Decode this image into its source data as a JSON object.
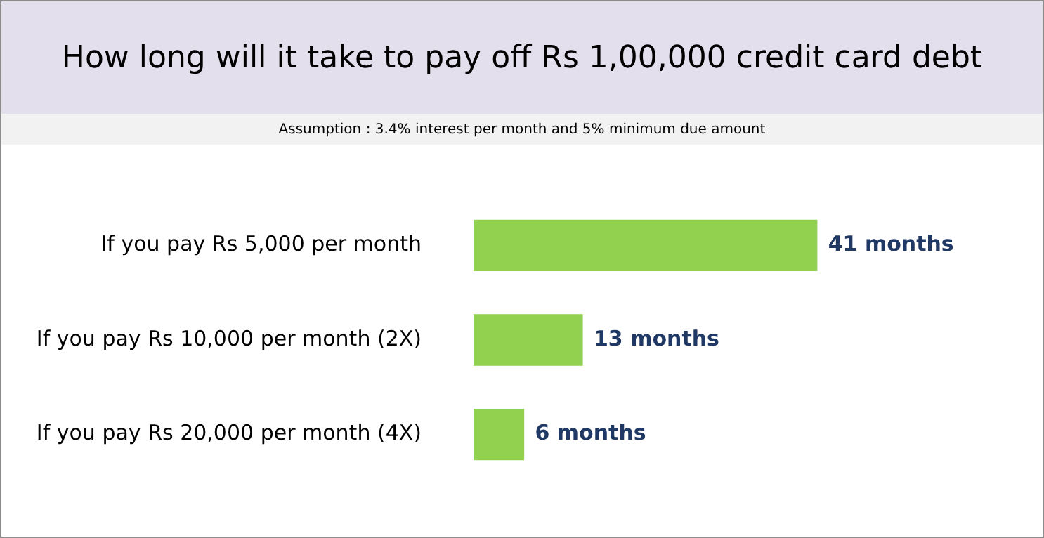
{
  "chart_data": {
    "type": "bar",
    "orientation": "horizontal",
    "title": "How long will it take to pay off Rs 1,00,000 credit card debt",
    "subtitle": "Assumption : 3.4% interest per month and 5% minimum due amount",
    "categories": [
      "If you pay Rs 5,000 per month",
      "If you pay Rs 10,000 per month (2X)",
      "If you pay Rs 20,000 per month (4X)"
    ],
    "series": [
      {
        "color": "#92d050",
        "values": [
          41,
          13,
          6
        ],
        "value_labels": [
          "41 months",
          "13 months",
          "6 months"
        ]
      }
    ],
    "tick_labels": "y",
    "legend": false
  }
}
